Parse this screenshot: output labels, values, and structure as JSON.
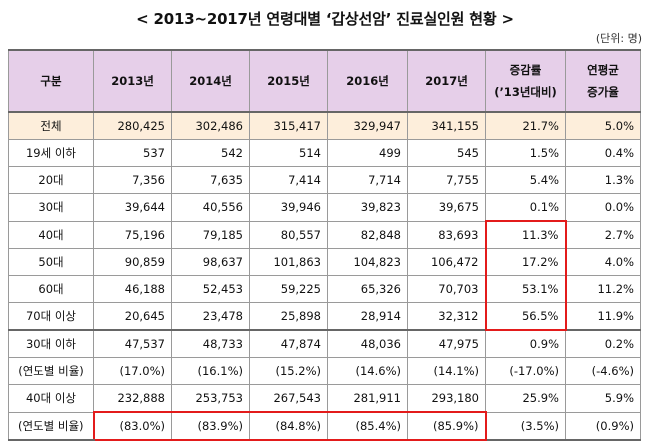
{
  "title": "< 2013~2017년 연령대별 ‘갑상선암’ 진료실인원 현황 >",
  "unit": "(단위: 명)",
  "headers": {
    "category": "구분",
    "y2013": "2013년",
    "y2014": "2014년",
    "y2015": "2015년",
    "y2016": "2016년",
    "y2017": "2017년",
    "change_line1": "증감률",
    "change_line2": "(’13년대비)",
    "avg_line1": "연평균",
    "avg_line2": "증가율"
  },
  "rows": [
    {
      "label": "전체",
      "v2013": "280,425",
      "v2014": "302,486",
      "v2015": "315,417",
      "v2016": "329,947",
      "v2017": "341,155",
      "change": "21.7%",
      "avg": "5.0%"
    },
    {
      "label": "19세 이하",
      "v2013": "537",
      "v2014": "542",
      "v2015": "514",
      "v2016": "499",
      "v2017": "545",
      "change": "1.5%",
      "avg": "0.4%"
    },
    {
      "label": "20대",
      "v2013": "7,356",
      "v2014": "7,635",
      "v2015": "7,414",
      "v2016": "7,714",
      "v2017": "7,755",
      "change": "5.4%",
      "avg": "1.3%"
    },
    {
      "label": "30대",
      "v2013": "39,644",
      "v2014": "40,556",
      "v2015": "39,946",
      "v2016": "39,823",
      "v2017": "39,675",
      "change": "0.1%",
      "avg": "0.0%"
    },
    {
      "label": "40대",
      "v2013": "75,196",
      "v2014": "79,185",
      "v2015": "80,557",
      "v2016": "82,848",
      "v2017": "83,693",
      "change": "11.3%",
      "avg": "2.7%"
    },
    {
      "label": "50대",
      "v2013": "90,859",
      "v2014": "98,637",
      "v2015": "101,863",
      "v2016": "104,823",
      "v2017": "106,472",
      "change": "17.2%",
      "avg": "4.0%"
    },
    {
      "label": "60대",
      "v2013": "46,188",
      "v2014": "52,453",
      "v2015": "59,225",
      "v2016": "65,326",
      "v2017": "70,703",
      "change": "53.1%",
      "avg": "11.2%"
    },
    {
      "label": "70대 이상",
      "v2013": "20,645",
      "v2014": "23,478",
      "v2015": "25,898",
      "v2016": "28,914",
      "v2017": "32,312",
      "change": "56.5%",
      "avg": "11.9%"
    },
    {
      "label": "30대 이하",
      "v2013": "47,537",
      "v2014": "48,733",
      "v2015": "47,874",
      "v2016": "48,036",
      "v2017": "47,975",
      "change": "0.9%",
      "avg": "0.2%"
    },
    {
      "label": "(연도별 비율)",
      "v2013": "(17.0%)",
      "v2014": "(16.1%)",
      "v2015": "(15.2%)",
      "v2016": "(14.6%)",
      "v2017": "(14.1%)",
      "change": "(-17.0%)",
      "avg": "(-4.6%)"
    },
    {
      "label": "40대 이상",
      "v2013": "232,888",
      "v2014": "253,753",
      "v2015": "267,543",
      "v2016": "281,911",
      "v2017": "293,180",
      "change": "25.9%",
      "avg": "5.9%"
    },
    {
      "label": "(연도별 비율)",
      "v2013": "(83.0%)",
      "v2014": "(83.9%)",
      "v2015": "(84.8%)",
      "v2016": "(85.4%)",
      "v2017": "(85.9%)",
      "change": "(3.5%)",
      "avg": "(0.9%)"
    }
  ],
  "colors": {
    "header_bg": "#e6cfe9",
    "total_bg": "#fdeedb",
    "highlight": "#e31b1b"
  }
}
